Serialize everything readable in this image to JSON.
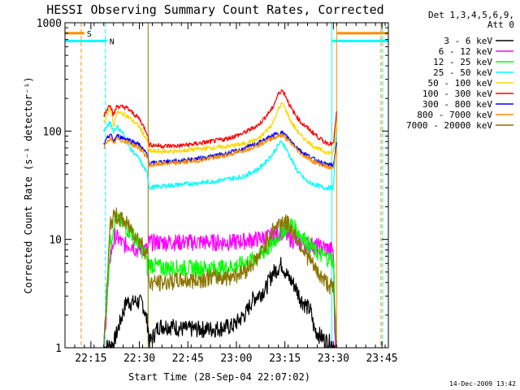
{
  "chart_data": {
    "type": "line",
    "title": "HESSI Observing Summary Count Rates, Corrected",
    "xlabel": "Start Time (28-Sep-04 22:07:02)",
    "ylabel": "Corrected Count Rate (s⁻¹ detector⁻¹)",
    "yscale": "log",
    "ylim": [
      1,
      1000
    ],
    "y_ticks": [
      {
        "value": 1,
        "label": "1"
      },
      {
        "value": 10,
        "label": "10"
      },
      {
        "value": 100,
        "label": "100"
      },
      {
        "value": 1000,
        "label": "1000"
      }
    ],
    "x_range_minutes": [
      0,
      100
    ],
    "x_ticks": [
      {
        "value": 8,
        "label": "22:15"
      },
      {
        "value": 23,
        "label": "22:30"
      },
      {
        "value": 38,
        "label": "22:45"
      },
      {
        "value": 53,
        "label": "23:00"
      },
      {
        "value": 68,
        "label": "23:15"
      },
      {
        "value": 83,
        "label": "23:30"
      },
      {
        "value": 98,
        "label": "23:45"
      }
    ],
    "grid": false,
    "legend_header": [
      "Det 1,3,4,5,6,9,",
      "Att 0"
    ],
    "legend_position": "right",
    "series": [
      {
        "name": "3 - 6 keV",
        "color": "#000000",
        "x": [
          12,
          15,
          19,
          21,
          21.3,
          24,
          25.7,
          26,
          29,
          33,
          36,
          41,
          46,
          52,
          56,
          58,
          62,
          64,
          67,
          69,
          71,
          73,
          76,
          77,
          80,
          82.5,
          84
        ],
        "y": [
          1,
          1.1,
          2.7,
          2.6,
          2.7,
          2.6,
          1.6,
          1.1,
          1.6,
          1.6,
          1.5,
          1.5,
          1.5,
          1.6,
          2.1,
          2.8,
          3.5,
          4.8,
          6.0,
          4.5,
          3.8,
          2.8,
          2.2,
          1.5,
          1.2,
          1.1,
          1
        ]
      },
      {
        "name": "6 - 12 keV",
        "color": "#ff00ff",
        "x": [
          12,
          14,
          15.5,
          18,
          21,
          22,
          24,
          25.5,
          26,
          29,
          34,
          40,
          46,
          52,
          58,
          62,
          65,
          67,
          69,
          72,
          76,
          80,
          83,
          83.5,
          84
        ],
        "y": [
          1,
          7,
          11,
          9,
          9,
          8,
          8.5,
          8,
          9.5,
          9.5,
          9.5,
          9.5,
          9.5,
          9.5,
          10,
          10.5,
          11,
          12,
          10.5,
          9.5,
          9,
          8.5,
          8,
          1.1,
          1
        ]
      },
      {
        "name": "12 - 25 keV",
        "color": "#00ff00",
        "x": [
          12,
          14,
          15.5,
          18,
          21,
          23,
          25,
          25.7,
          26,
          30,
          35,
          40,
          45,
          50,
          55,
          60,
          64,
          67,
          70,
          73,
          77,
          80,
          83,
          84
        ],
        "y": [
          1,
          9,
          16,
          14,
          11,
          9,
          7,
          5,
          6,
          5.5,
          5.5,
          5.5,
          5.5,
          5.5,
          6,
          7,
          9,
          12,
          14,
          11,
          8,
          7,
          6.5,
          1
        ]
      },
      {
        "name": "25 - 50 keV",
        "color": "#00ffff",
        "x": [
          12,
          14,
          15,
          16,
          18,
          20,
          23,
          25.5,
          26,
          30,
          35,
          40,
          45,
          50,
          55,
          60,
          64,
          66,
          67,
          68,
          70,
          72,
          75,
          80,
          83,
          84
        ],
        "y": [
          100,
          120,
          100,
          110,
          95,
          70,
          55,
          40,
          30,
          31,
          32,
          33,
          34,
          36,
          38,
          45,
          60,
          75,
          80,
          72,
          55,
          42,
          34,
          30,
          30,
          100
        ]
      },
      {
        "name": "50 - 100 keV",
        "color": "#ffd700",
        "x": [
          12,
          14,
          15,
          16,
          19,
          23,
          25.5,
          26,
          30,
          35,
          40,
          45,
          50,
          55,
          60,
          64,
          66,
          67,
          68,
          70,
          73,
          77,
          80,
          83,
          84
        ],
        "y": [
          120,
          170,
          110,
          150,
          140,
          110,
          80,
          65,
          65,
          65,
          68,
          70,
          72,
          76,
          85,
          115,
          160,
          180,
          165,
          120,
          90,
          72,
          65,
          62,
          120
        ]
      },
      {
        "name": "100 - 300 keV",
        "color": "#ff0000",
        "x": [
          12,
          14,
          15,
          16,
          19,
          23,
          25.5,
          26,
          30,
          35,
          40,
          45,
          50,
          55,
          60,
          64,
          66,
          67,
          68,
          70,
          73,
          77,
          80,
          83,
          84
        ],
        "y": [
          140,
          180,
          140,
          170,
          165,
          130,
          95,
          75,
          73,
          73,
          76,
          80,
          85,
          95,
          115,
          160,
          220,
          240,
          220,
          160,
          120,
          95,
          80,
          75,
          150
        ]
      },
      {
        "name": "300 - 800 keV",
        "color": "#0000ff",
        "x": [
          12,
          14,
          15,
          16,
          19,
          23,
          25.5,
          26,
          30,
          35,
          40,
          45,
          50,
          55,
          60,
          64,
          66,
          67,
          68,
          70,
          73,
          77,
          80,
          83,
          84
        ],
        "y": [
          75,
          95,
          80,
          90,
          85,
          75,
          60,
          50,
          52,
          53,
          55,
          58,
          62,
          68,
          78,
          90,
          95,
          97,
          93,
          80,
          65,
          55,
          50,
          48,
          80
        ]
      },
      {
        "name": "800 - 7000 keV",
        "color": "#ff8c00",
        "x": [
          12,
          14,
          15,
          16,
          19,
          23,
          25.5,
          26,
          30,
          35,
          40,
          45,
          50,
          55,
          60,
          64,
          66,
          67,
          68,
          70,
          73,
          77,
          80,
          83,
          84
        ],
        "y": [
          70,
          88,
          75,
          85,
          80,
          70,
          57,
          48,
          50,
          51,
          53,
          56,
          60,
          66,
          75,
          86,
          90,
          92,
          88,
          76,
          62,
          52,
          48,
          45,
          75
        ]
      },
      {
        "name": "7000 - 20000 keV",
        "color": "#8b7500",
        "x": [
          12,
          14,
          15.5,
          18,
          21,
          24,
          25.7,
          26,
          30,
          35,
          40,
          45,
          50,
          55,
          60,
          64,
          67,
          69,
          72,
          75,
          78,
          81,
          83,
          84
        ],
        "y": [
          1,
          14,
          17,
          15,
          12,
          9,
          7,
          4,
          4,
          4.2,
          4.2,
          4.5,
          4.5,
          5,
          7,
          12,
          15,
          14,
          10,
          7,
          5,
          4,
          3.5,
          1
        ]
      }
    ],
    "vertical_lines": [
      {
        "x": 5,
        "color": "#ff8c00",
        "style": "dashed"
      },
      {
        "x": 12.5,
        "color": "#00ffff",
        "style": "dashed"
      },
      {
        "x": 25.7,
        "color": "#8b7500",
        "style": "solid"
      },
      {
        "x": 82.5,
        "color": "#00ffff",
        "style": "solid"
      },
      {
        "x": 84,
        "color": "#ff8c00",
        "style": "solid"
      },
      {
        "x": 97.7,
        "color": "#ff8c00",
        "style": "dashed"
      },
      {
        "x": 98.2,
        "color": "#00ffff",
        "style": "dashed"
      }
    ],
    "flag_bars": [
      {
        "label": "S",
        "color": "#ff8c00",
        "y": 800,
        "segments": [
          [
            0,
            6
          ],
          [
            84,
            100
          ]
        ]
      },
      {
        "label": "N",
        "color": "#00ffff",
        "y": 680,
        "segments": [
          [
            0,
            13
          ],
          [
            82.5,
            100
          ]
        ]
      }
    ]
  },
  "footer_date": "14-Dec-2009 13:42"
}
